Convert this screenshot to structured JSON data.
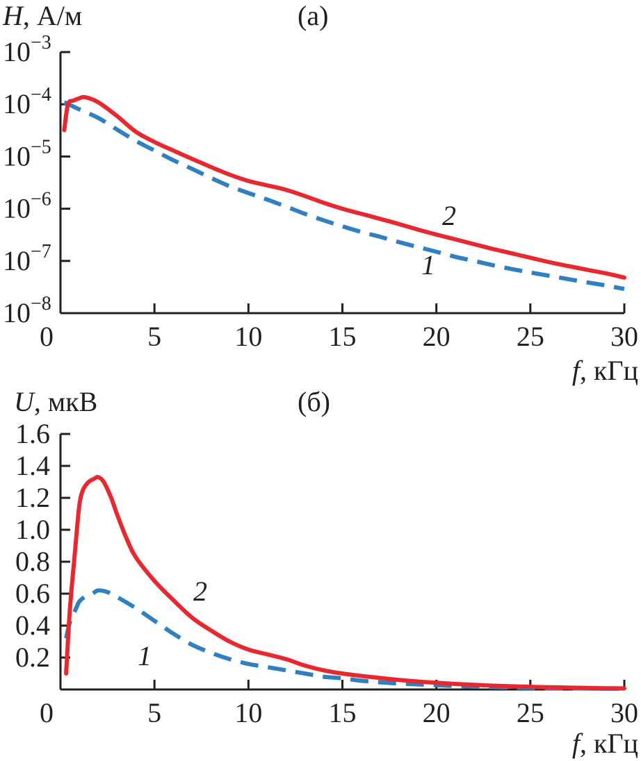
{
  "chart_data": [
    {
      "type": "line",
      "panel_label": "(a)",
      "ylabel_symbol": "H",
      "ylabel_unit": ", А/м",
      "xlabel_symbol": "f",
      "xlabel_unit": ", кГц",
      "xlim": [
        0,
        30
      ],
      "ylim": [
        1e-08,
        0.001
      ],
      "yscale": "log",
      "x_ticks": [
        "0",
        "5",
        "10",
        "15",
        "20",
        "25",
        "30"
      ],
      "y_ticks": [
        {
          "base": "10",
          "exp": "−3",
          "value": 0.001
        },
        {
          "base": "10",
          "exp": "−4",
          "value": 0.0001
        },
        {
          "base": "10",
          "exp": "−5",
          "value": 1e-05
        },
        {
          "base": "10",
          "exp": "−6",
          "value": 1e-06
        },
        {
          "base": "10",
          "exp": "−7",
          "value": 1e-07
        },
        {
          "base": "10",
          "exp": "−8",
          "value": 1e-08
        }
      ],
      "grid": false,
      "series": [
        {
          "name": "1",
          "color": "#2f7fc1",
          "style": "dashed",
          "x": [
            0.2,
            1,
            2,
            3,
            4,
            5,
            6,
            7,
            8,
            9,
            10,
            11,
            12,
            13,
            14,
            15,
            16,
            17,
            18,
            19,
            20,
            21,
            22,
            23,
            24,
            25,
            26,
            27,
            28,
            29,
            30
          ],
          "y": [
            0.00011,
            8e-05,
            5.5e-05,
            3.3e-05,
            2e-05,
            1.3e-05,
            8.5e-06,
            5.8e-06,
            3.9e-06,
            2.7e-06,
            2e-06,
            1.5e-06,
            1.1e-06,
            8e-07,
            6e-07,
            4.6e-07,
            3.6e-07,
            2.9e-07,
            2.3e-07,
            1.85e-07,
            1.5e-07,
            1.2e-07,
            1e-07,
            8.3e-08,
            7e-08,
            6e-08,
            5.2e-08,
            4.5e-08,
            3.9e-08,
            3.4e-08,
            2.9e-08
          ]
        },
        {
          "name": "2",
          "color": "#e8282f",
          "style": "solid",
          "x": [
            0.2,
            0.4,
            0.7,
            1,
            1.3,
            2,
            3,
            4,
            5,
            6,
            7,
            8,
            9,
            10,
            11,
            12,
            13,
            14,
            15,
            16,
            17,
            18,
            19,
            20,
            21,
            22,
            23,
            24,
            25,
            26,
            27,
            28,
            29,
            30
          ],
          "y": [
            3.2e-05,
            0.0001,
            0.000118,
            0.00013,
            0.000137,
            0.00011,
            6e-05,
            3e-05,
            1.9e-05,
            1.3e-05,
            9e-06,
            6.3e-06,
            4.5e-06,
            3.4e-06,
            2.8e-06,
            2.3e-06,
            1.75e-06,
            1.3e-06,
            1e-06,
            8e-07,
            6.4e-07,
            5.1e-07,
            4e-07,
            3.2e-07,
            2.6e-07,
            2.1e-07,
            1.7e-07,
            1.4e-07,
            1.15e-07,
            9.5e-08,
            8e-08,
            6.8e-08,
            5.8e-08,
            4.8e-08
          ]
        }
      ]
    },
    {
      "type": "line",
      "panel_label": "(б)",
      "ylabel_symbol": "U",
      "ylabel_unit": ", мкВ",
      "xlabel_symbol": "f",
      "xlabel_unit": ", кГц",
      "xlim": [
        0,
        30
      ],
      "ylim": [
        0,
        1.6
      ],
      "yscale": "linear",
      "x_ticks": [
        "0",
        "5",
        "10",
        "15",
        "20",
        "25",
        "30"
      ],
      "y_ticks": [
        {
          "label": "0.2",
          "value": 0.2
        },
        {
          "label": "0.4",
          "value": 0.4
        },
        {
          "label": "0.6",
          "value": 0.6
        },
        {
          "label": "0.8",
          "value": 0.8
        },
        {
          "label": "1.0",
          "value": 1.0
        },
        {
          "label": "1.2",
          "value": 1.2
        },
        {
          "label": "1.4",
          "value": 1.4
        },
        {
          "label": "1.6",
          "value": 1.6
        }
      ],
      "grid": false,
      "series": [
        {
          "name": "1",
          "color": "#2f7fc1",
          "style": "dashed",
          "x": [
            0.3,
            0.5,
            0.8,
            1,
            1.3,
            1.7,
            2,
            2.5,
            3,
            4,
            5,
            6,
            7,
            8,
            9,
            10,
            11,
            12,
            13,
            14,
            15,
            16,
            17,
            18,
            19,
            20,
            21,
            22,
            23,
            24,
            25,
            26,
            27,
            28,
            29,
            30
          ],
          "y": [
            0.32,
            0.42,
            0.5,
            0.55,
            0.58,
            0.6,
            0.62,
            0.61,
            0.58,
            0.51,
            0.43,
            0.35,
            0.28,
            0.23,
            0.19,
            0.16,
            0.14,
            0.12,
            0.1,
            0.08,
            0.07,
            0.055,
            0.045,
            0.038,
            0.032,
            0.027,
            0.022,
            0.018,
            0.015,
            0.012,
            0.01,
            0.008,
            0.007,
            0.006,
            0.005,
            0.004
          ]
        },
        {
          "name": "2",
          "color": "#e8282f",
          "style": "solid",
          "x": [
            0.3,
            0.5,
            0.8,
            1,
            1.2,
            1.5,
            1.8,
            2,
            2.3,
            2.7,
            3,
            3.5,
            4,
            5,
            6,
            7,
            8,
            9,
            10,
            11,
            12,
            13,
            14,
            15,
            16,
            17,
            18,
            19,
            20,
            21,
            22,
            23,
            24,
            25,
            26,
            27,
            28,
            29,
            30
          ],
          "y": [
            0.1,
            0.5,
            0.9,
            1.15,
            1.25,
            1.3,
            1.32,
            1.33,
            1.3,
            1.2,
            1.1,
            0.95,
            0.83,
            0.68,
            0.56,
            0.45,
            0.37,
            0.3,
            0.25,
            0.22,
            0.19,
            0.15,
            0.12,
            0.1,
            0.085,
            0.072,
            0.06,
            0.05,
            0.042,
            0.035,
            0.029,
            0.024,
            0.02,
            0.017,
            0.014,
            0.012,
            0.01,
            0.008,
            0.007
          ]
        }
      ]
    }
  ]
}
